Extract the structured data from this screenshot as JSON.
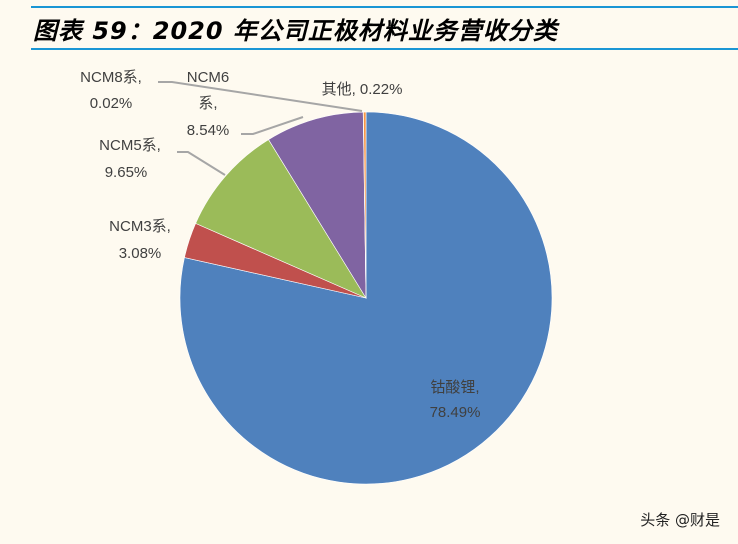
{
  "header": {
    "title": "图表 59：2020 年公司正极材料业务营收分类"
  },
  "watermark": "头条 @财是",
  "chart_data": {
    "type": "pie",
    "title": "图表 59：2020 年公司正极材料业务营收分类",
    "start_angle": "12 o'clock",
    "direction": "clockwise",
    "categories": [
      "钴酸锂",
      "NCM3系",
      "NCM5系",
      "NCM6系",
      "NCM8系",
      "其他"
    ],
    "values": [
      78.49,
      3.08,
      9.65,
      8.54,
      0.02,
      0.22
    ],
    "unit": "%",
    "colors": [
      "#4f81bd",
      "#c0504d",
      "#9bbb59",
      "#8064a2",
      "#4bacc6",
      "#f79646"
    ],
    "labels": [
      {
        "line1": "钴酸锂,",
        "line2": "78.49%"
      },
      {
        "line1": "NCM3系,",
        "line2": "3.08%"
      },
      {
        "line1": "NCM5系,",
        "line2": "9.65%"
      },
      {
        "line1": "NCM6",
        "line1b": "系,",
        "line2": "8.54%"
      },
      {
        "line1": "NCM8系,",
        "line2": "0.02%"
      },
      {
        "line1": "其他, 0.22%"
      }
    ],
    "legend": "none (data labels with leader lines)"
  }
}
